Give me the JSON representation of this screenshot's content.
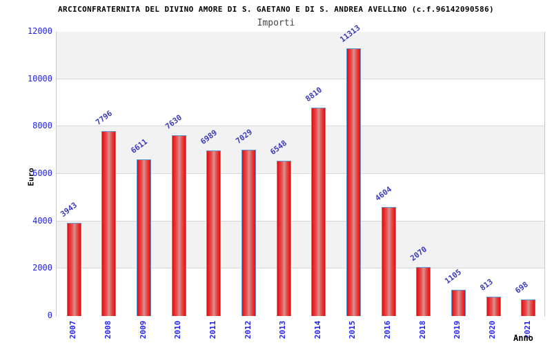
{
  "header": {
    "title": "ARCICONFRATERNITA DEL DIVINO AMORE DI S. GAETANO E DI S. ANDREA AVELLINO (c.f.96142090586)",
    "subtitle": "Importi"
  },
  "chart_data": {
    "type": "bar",
    "title": "Importi",
    "xlabel": "Anno",
    "ylabel": "Euro",
    "categories": [
      "2007",
      "2008",
      "2009",
      "2010",
      "2011",
      "2012",
      "2013",
      "2014",
      "2015",
      "2016",
      "2018",
      "2019",
      "2020",
      "2021"
    ],
    "values": [
      3943,
      7796,
      6611,
      7630,
      6989,
      7029,
      6548,
      8810,
      11313,
      4604,
      2070,
      1105,
      813,
      698
    ],
    "value_labels_shown": true,
    "ylim": [
      0,
      12000
    ],
    "ytick_step": 2000,
    "yticks": [
      0,
      2000,
      4000,
      6000,
      8000,
      10000,
      12000
    ],
    "grid": "alternating horizontal bands every 2000",
    "legend": "none",
    "colors": {
      "tick_label": "#2222ee",
      "value_label": "#3b3bb8",
      "bar_border": "#5b9bd5",
      "bar_gradient": [
        "#cf1212",
        "#ee2222",
        "#e05553",
        "#d99292",
        "#e05553",
        "#ee2222",
        "#cf1212"
      ],
      "band_gray": "#f2f2f2",
      "band_white": "#ffffff",
      "grid_line": "#d8d8d8",
      "title": "#000000",
      "subtitle": "#444444",
      "axis_title": "#000000"
    }
  }
}
